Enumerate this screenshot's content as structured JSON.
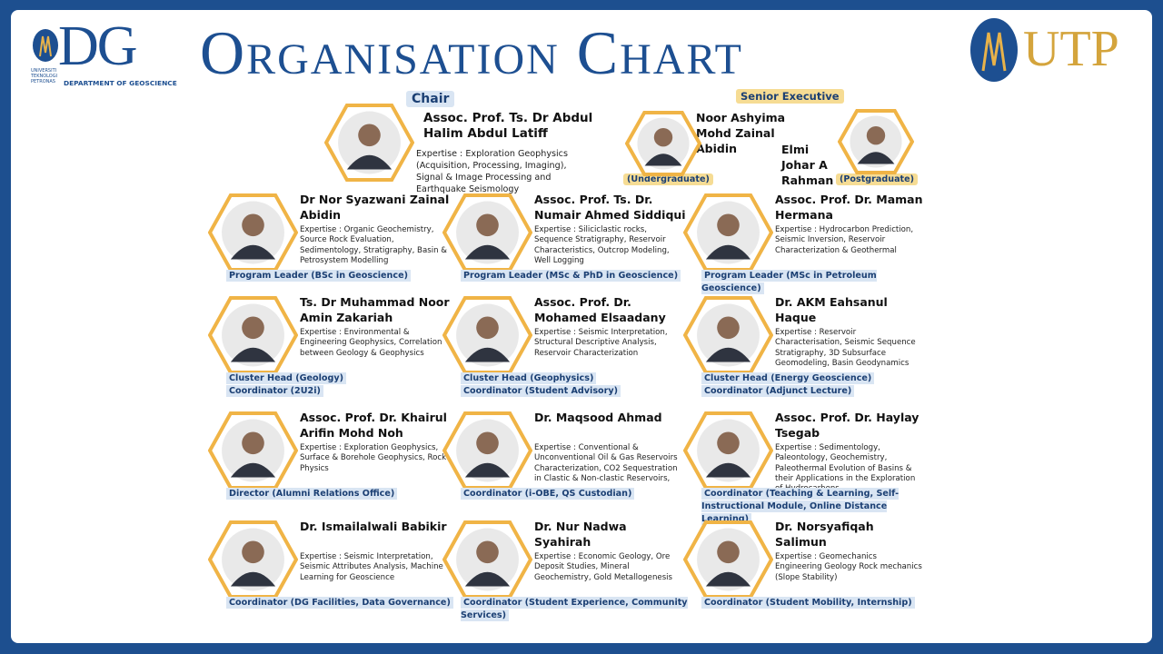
{
  "header": {
    "logo_left": {
      "text": "DG",
      "university": "UNIVERSITI TEKNOLOGI PETRONAS",
      "department": "DEPARTMENT OF GEOSCIENCE"
    },
    "title": "Organisation Chart",
    "logo_right": "UTP"
  },
  "chair": {
    "label": "Chair",
    "name": "Assoc. Prof.  Ts. Dr Abdul Halim Abdul Latiff",
    "expertise": "Expertise : Exploration Geophysics (Acquisition, Processing, Imaging), Signal & Image Processing and Earthquake Seismology"
  },
  "senior_executive": {
    "label": "Senior Executive",
    "members": [
      {
        "name": "Noor Ashyima Mohd Zainal Abidin",
        "role": "(Undergraduate)"
      },
      {
        "name": "Elmi Johar A Rahman",
        "role": "(Postgraduate)"
      }
    ]
  },
  "members": [
    {
      "name": "Dr Nor Syazwani Zainal Abidin",
      "expertise": "Expertise : Organic Geochemistry, Source Rock Evaluation, Sedimentology, Stratigraphy, Basin & Petrosystem Modelling",
      "roles": [
        "Program Leader (BSc in Geoscience)"
      ]
    },
    {
      "name": "Assoc. Prof. Ts. Dr. Numair Ahmed Siddiqui",
      "expertise": "Expertise : Siliciclastic rocks, Sequence Stratigraphy, Reservoir Characteristics, Outcrop Modeling, Well Logging",
      "roles": [
        "Program Leader (MSc & PhD in Geoscience)"
      ]
    },
    {
      "name": "Assoc. Prof. Dr. Maman Hermana",
      "expertise": "Expertise : Hydrocarbon Prediction, Seismic Inversion, Reservoir Characterization & Geothermal",
      "roles": [
        "Program Leader (MSc in Petroleum Geoscience)"
      ]
    },
    {
      "name": "Ts. Dr Muhammad Noor Amin Zakariah",
      "expertise": "Expertise : Environmental & Engineering Geophysics, Correlation between Geology & Geophysics",
      "roles": [
        "Cluster Head (Geology)",
        "Coordinator (2U2i)"
      ]
    },
    {
      "name": "Assoc. Prof. Dr. Mohamed Elsaadany",
      "expertise": "Expertise : Seismic Interpretation, Structural Descriptive Analysis, Reservoir Characterization",
      "roles": [
        "Cluster Head (Geophysics)",
        "Coordinator (Student Advisory)"
      ]
    },
    {
      "name": "Dr. AKM Eahsanul Haque",
      "expertise": "Expertise : Reservoir Characterisation, Seismic Sequence Stratigraphy, 3D Subsurface Geomodeling, Basin Geodynamics",
      "roles": [
        "Cluster Head (Energy Geoscience)",
        "Coordinator (Adjunct Lecture)"
      ]
    },
    {
      "name": "Assoc. Prof. Dr. Khairul Arifin Mohd Noh",
      "expertise": "Expertise : Exploration Geophysics, Surface & Borehole Geophysics, Rock Physics",
      "roles": [
        "Director (Alumni Relations Office)"
      ]
    },
    {
      "name": "Dr. Maqsood Ahmad",
      "expertise": "Expertise : Conventional & Unconventional Oil & Gas Reservoirs Characterization, CO2 Sequestration in Clastic & Non-clastic Reservoirs,",
      "roles": [
        "Coordinator (i-OBE, QS Custodian)"
      ]
    },
    {
      "name": "Assoc. Prof. Dr. Haylay Tsegab",
      "expertise": "Expertise : Sedimentology, Paleontology, Geochemistry, Paleothermal Evolution of Basins & their Applications in the Exploration of Hydrocarbons",
      "roles": [
        "Coordinator (Teaching & Learning, Self-Instructional Module, Online Distance Learning)"
      ]
    },
    {
      "name": "Dr. Ismailalwali Babikir",
      "expertise": "Expertise : Seismic Interpretation, Seismic Attributes Analysis, Machine Learning for Geoscience",
      "roles": [
        "Coordinator (DG Facilities, Data Governance)"
      ]
    },
    {
      "name": "Dr. Nur Nadwa Syahirah",
      "expertise": "Expertise : Economic Geology, Ore Deposit Studies, Mineral Geochemistry, Gold Metallogenesis",
      "roles": [
        "Coordinator (Student Experience, Community Services)"
      ]
    },
    {
      "name": "Dr. Norsyafiqah Salimun",
      "expertise": "Expertise : Geomechanics Engineering Geology Rock mechanics (Slope Stability)",
      "roles": [
        "Coordinator (Student Mobility, Internship)"
      ]
    }
  ]
}
